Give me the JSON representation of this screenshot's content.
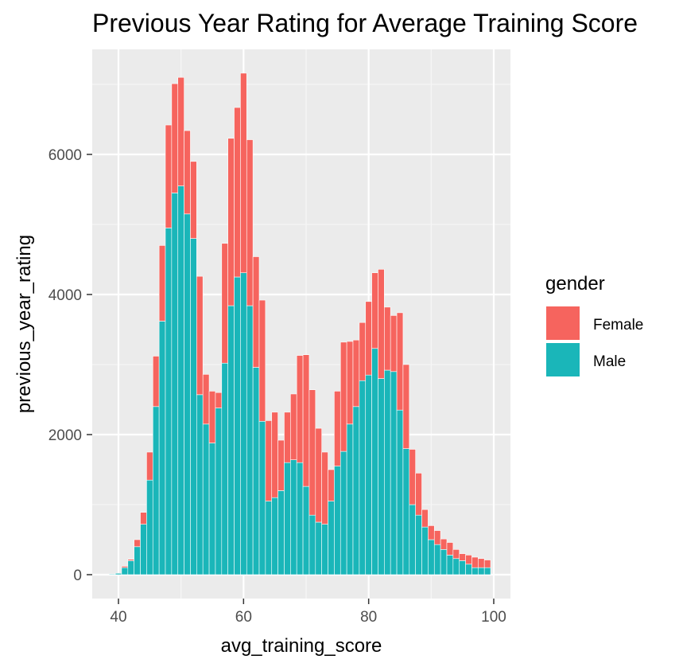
{
  "chart_data": {
    "type": "bar",
    "stacked": true,
    "title": "Previous Year Rating for Average Training Score",
    "xlabel": "avg_training_score",
    "ylabel": "previous_year_rating",
    "xlim": [
      38,
      100.5
    ],
    "ylim": [
      0,
      7400
    ],
    "xticks": [
      40,
      60,
      80,
      100
    ],
    "yticks": [
      0,
      2000,
      4000,
      6000
    ],
    "grid": true,
    "legend": {
      "title": "gender",
      "position": "right"
    },
    "x": [
      39,
      40,
      41,
      42,
      43,
      44,
      45,
      46,
      47,
      48,
      49,
      50,
      51,
      52,
      53,
      54,
      55,
      56,
      57,
      58,
      59,
      60,
      61,
      62,
      63,
      64,
      65,
      66,
      67,
      68,
      69,
      70,
      71,
      72,
      73,
      74,
      75,
      76,
      77,
      78,
      79,
      80,
      81,
      82,
      83,
      84,
      85,
      86,
      87,
      88,
      89,
      90,
      91,
      92,
      93,
      94,
      95,
      96,
      97,
      98,
      99
    ],
    "series": [
      {
        "name": "Male",
        "color": "#1ab6b9",
        "values": [
          10,
          20,
          100,
          200,
          400,
          720,
          1350,
          2400,
          3620,
          4950,
          5450,
          5550,
          5150,
          4800,
          2570,
          2150,
          1880,
          2380,
          3020,
          3840,
          4250,
          4310,
          3840,
          2960,
          2190,
          1050,
          1100,
          1200,
          1600,
          1640,
          1600,
          1260,
          850,
          750,
          720,
          1050,
          1550,
          1760,
          2150,
          2400,
          2770,
          2850,
          3230,
          2800,
          2920,
          2900,
          2350,
          1800,
          1000,
          850,
          680,
          500,
          430,
          360,
          280,
          230,
          200,
          150,
          100,
          100,
          100
        ]
      },
      {
        "name": "Female",
        "color": "#f6645e",
        "values": [
          0,
          0,
          20,
          20,
          100,
          170,
          400,
          720,
          1080,
          1470,
          1560,
          1550,
          1190,
          1100,
          1690,
          710,
          740,
          220,
          1710,
          2390,
          2420,
          2850,
          2370,
          1580,
          1730,
          1150,
          1220,
          720,
          720,
          940,
          1530,
          1880,
          1790,
          1340,
          1030,
          450,
          1070,
          1560,
          1180,
          950,
          830,
          1050,
          1080,
          1560,
          900,
          800,
          1390,
          1200,
          790,
          600,
          250,
          200,
          200,
          150,
          180,
          130,
          100,
          130,
          150,
          130,
          110
        ]
      }
    ]
  }
}
